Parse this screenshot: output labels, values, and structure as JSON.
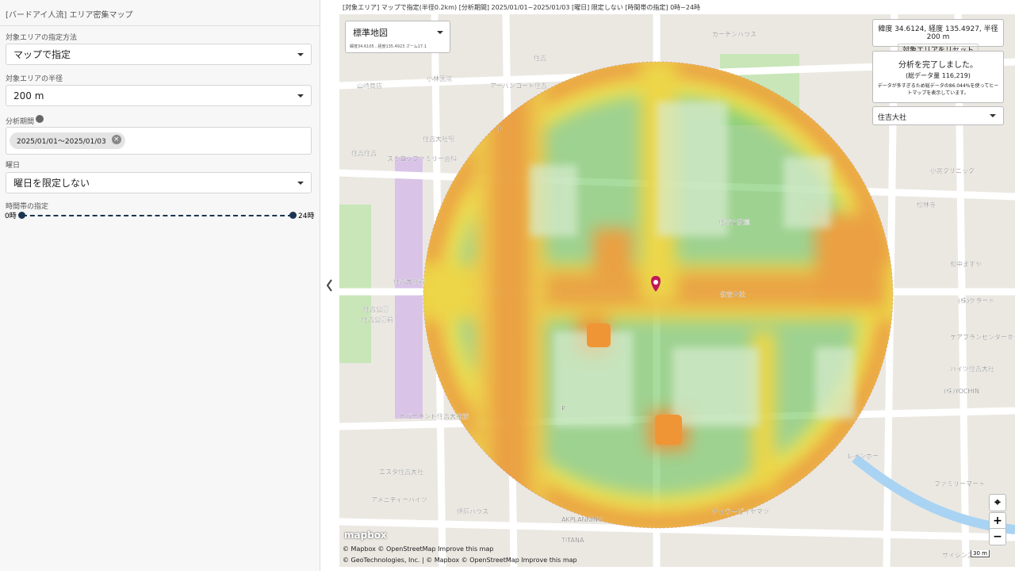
{
  "sidebar": {
    "title": "[バードアイ人流] エリア密集マップ",
    "fields": [
      {
        "label": "対象エリアの指定方法",
        "value": "マップで指定"
      },
      {
        "label": "対象エリアの半径",
        "value": "200 m"
      },
      {
        "label": "分析期間",
        "chip": "2025/01/01〜2025/01/03"
      },
      {
        "label": "曜日",
        "value": "曜日を限定しない"
      }
    ],
    "time_range": {
      "label": "時間帯の指定",
      "min": "0時",
      "max": "24時"
    }
  },
  "map": {
    "status_bar": "[対象エリア] マップで指定(半径0.2km) [分析期間] 2025/01/01~2025/01/03 [曜日] 限定しない [時間帯の指定] 0時~24時",
    "style_select": "標準地図",
    "coords": "緯度34.6105 , 経度135.4923 ズーム17.1",
    "center_info": "緯度 34.6124, 経度 135.4927, 半径 200 m",
    "reset_button": "対象エリアをリセット",
    "result": {
      "title": "分析を完了しました。",
      "count": "(総データ量 116,219)",
      "note": "データが多すぎるため総データの86.044%を使ってヒートマップを表示しています。"
    },
    "place_select": "住吉大社",
    "labels": [
      "住吉大社",
      "住吉文教園",
      "住吉大社駅",
      "住吉",
      "P",
      "P",
      "小林医院",
      "ガーデンハウス",
      "住吉公園",
      "住吉公園前",
      "ネバーランド住吉大社前",
      "エスタ住吉大社",
      "アメニティーハイツ",
      "伊藤ハウス",
      "AKPLANNING",
      "TITANA",
      "チュウービイヤマツ",
      "レインボー",
      "ケアプランセンター幸せ",
      "ハイツ住吉大社",
      "(株)YOCHIN",
      "(株)グラード",
      "松林寺",
      "和中ますや",
      "ファミリーマート",
      "サイシンズ",
      "住吉大社前",
      "浅利医院",
      "小宮クリニック",
      "山崎商店",
      "住吉住吉",
      "アーバンコート住吉",
      "スミヨシファミリー歯科"
    ],
    "logo": "mapbox",
    "attribution": [
      "© Mapbox © OpenStreetMap Improve this map",
      "© GeoTechnologies, Inc. | © Mapbox © OpenStreetMap Improve this map"
    ],
    "scale": "30 m"
  }
}
